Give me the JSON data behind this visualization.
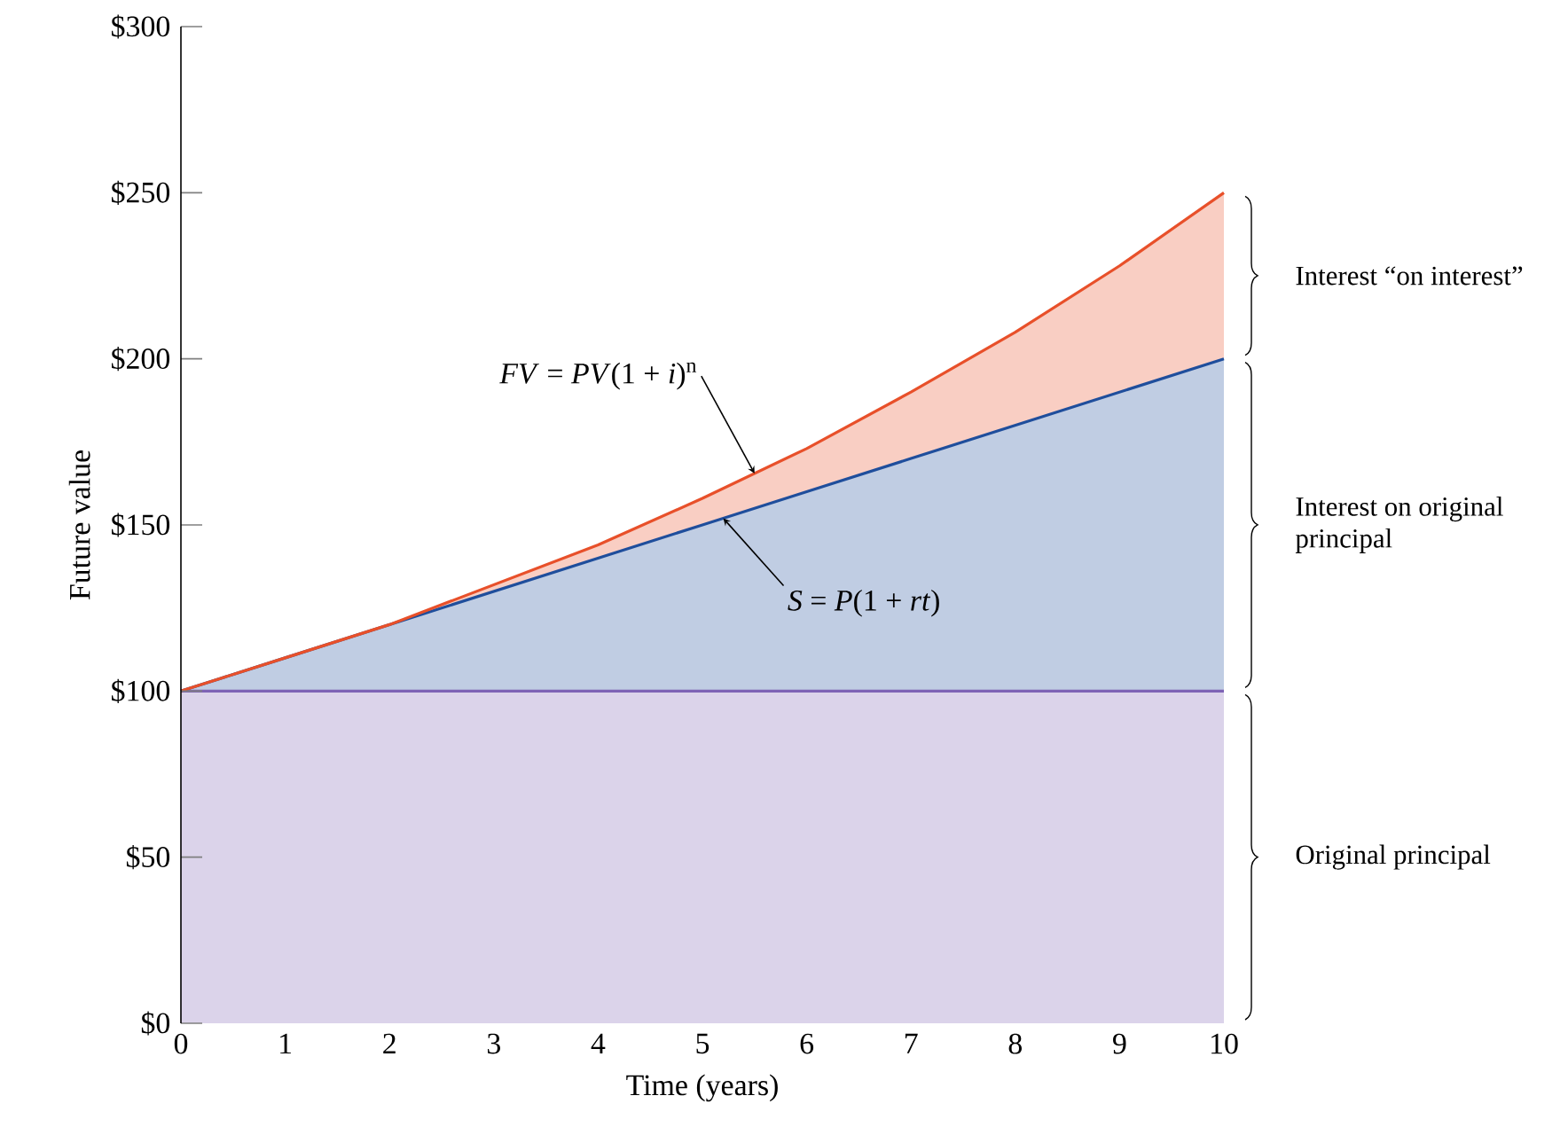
{
  "chart_data": {
    "type": "area",
    "xlabel": "Time (years)",
    "ylabel": "Future value",
    "x": [
      0,
      1,
      2,
      3,
      4,
      5,
      6,
      7,
      8,
      9,
      10
    ],
    "series": [
      {
        "color": "#7d63b5",
        "values": [
          100,
          100,
          100,
          100,
          100,
          100,
          100,
          100,
          100,
          100,
          100
        ]
      },
      {
        "color": "#1f4e9c",
        "values": [
          100,
          110,
          120,
          130,
          140,
          150,
          160,
          170,
          180,
          190,
          200
        ]
      },
      {
        "color": "#e8502a",
        "values": [
          100,
          110,
          120,
          132,
          144,
          158,
          173,
          190,
          208,
          228,
          250
        ]
      }
    ],
    "xlim": [
      0,
      10
    ],
    "xticks": [
      0,
      1,
      2,
      3,
      4,
      5,
      6,
      7,
      8,
      9,
      10
    ],
    "ylim": [
      0,
      300
    ],
    "yticks": [
      {
        "value": 0,
        "label": "$0"
      },
      {
        "value": 50,
        "label": "$50"
      },
      {
        "value": 100,
        "label": "$100"
      },
      {
        "value": 150,
        "label": "$150"
      },
      {
        "value": 200,
        "label": "$200"
      },
      {
        "value": 250,
        "label": "$250"
      },
      {
        "value": 300,
        "label": "$300"
      }
    ],
    "annotations": [
      {
        "text": "*FV* = *PV*(1 + *i*)$^{n}$",
        "x": 5.5,
        "y": 165.5
      },
      {
        "text": "*S* = *P*(1 + *rt*)",
        "x": 5.2,
        "y": 152
      },
      {
        "text": "Interest “on interest”",
        "x": 10,
        "y": 225
      },
      {
        "text": "Interest on original principal",
        "x": 10,
        "y": 150
      },
      {
        "text": "Original principal",
        "x": 10,
        "y": 50
      }
    ]
  }
}
